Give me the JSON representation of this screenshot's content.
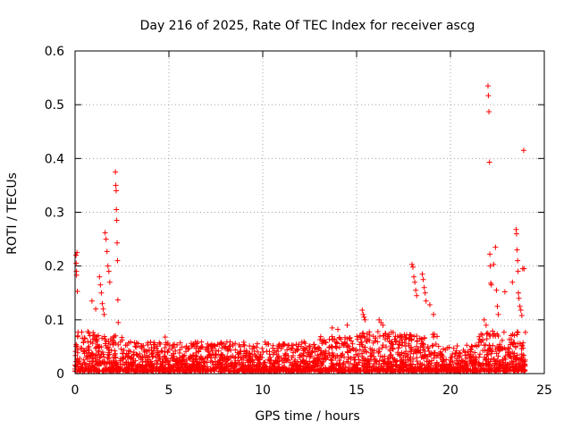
{
  "chart_data": {
    "type": "scatter",
    "title": "Day 216 of 2025, Rate Of TEC Index for receiver ascg",
    "xlabel": "GPS time / hours",
    "ylabel": "ROTI / TECUs",
    "xlim": [
      0,
      25
    ],
    "ylim": [
      0,
      0.6
    ],
    "x_ticks": [
      0,
      5,
      10,
      15,
      20,
      25
    ],
    "x_tick_labels": [
      "0",
      "5",
      "10",
      "15",
      "20",
      "25"
    ],
    "y_ticks": [
      0,
      0.1,
      0.2,
      0.3,
      0.4,
      0.5,
      0.6
    ],
    "y_tick_labels": [
      "0",
      "0.1",
      "0.2",
      "0.3",
      "0.4",
      "0.5",
      "0.6"
    ],
    "grid": true,
    "marker": "plus",
    "color": "#ff0000",
    "series": [
      {
        "name": "ROTI",
        "points": [
          [
            0.05,
            0.22
          ],
          [
            0.06,
            0.205
          ],
          [
            0.07,
            0.19
          ],
          [
            0.08,
            0.183
          ],
          [
            0.1,
            0.225
          ],
          [
            0.12,
            0.153
          ],
          [
            0.15,
            0.07
          ],
          [
            0.9,
            0.135
          ],
          [
            1.1,
            0.12
          ],
          [
            1.3,
            0.18
          ],
          [
            1.35,
            0.165
          ],
          [
            1.4,
            0.15
          ],
          [
            1.45,
            0.13
          ],
          [
            1.5,
            0.12
          ],
          [
            1.55,
            0.11
          ],
          [
            1.6,
            0.262
          ],
          [
            1.65,
            0.25
          ],
          [
            1.7,
            0.227
          ],
          [
            1.75,
            0.2
          ],
          [
            1.8,
            0.19
          ],
          [
            1.85,
            0.17
          ],
          [
            2.15,
            0.375
          ],
          [
            2.17,
            0.35
          ],
          [
            2.19,
            0.34
          ],
          [
            2.2,
            0.305
          ],
          [
            2.22,
            0.285
          ],
          [
            2.24,
            0.243
          ],
          [
            2.26,
            0.21
          ],
          [
            2.28,
            0.137
          ],
          [
            2.3,
            0.095
          ],
          [
            4.8,
            0.068
          ],
          [
            13.7,
            0.085
          ],
          [
            14.0,
            0.082
          ],
          [
            14.5,
            0.09
          ],
          [
            15.3,
            0.118
          ],
          [
            15.35,
            0.11
          ],
          [
            15.4,
            0.105
          ],
          [
            15.45,
            0.1
          ],
          [
            16.2,
            0.1
          ],
          [
            16.3,
            0.095
          ],
          [
            16.4,
            0.09
          ],
          [
            17.95,
            0.203
          ],
          [
            18.0,
            0.198
          ],
          [
            18.05,
            0.18
          ],
          [
            18.1,
            0.17
          ],
          [
            18.15,
            0.155
          ],
          [
            18.2,
            0.145
          ],
          [
            18.5,
            0.185
          ],
          [
            18.55,
            0.175
          ],
          [
            18.6,
            0.16
          ],
          [
            18.65,
            0.15
          ],
          [
            18.7,
            0.135
          ],
          [
            18.9,
            0.128
          ],
          [
            19.1,
            0.11
          ],
          [
            21.8,
            0.1
          ],
          [
            21.9,
            0.09
          ],
          [
            22.0,
            0.535
          ],
          [
            22.02,
            0.517
          ],
          [
            22.05,
            0.487
          ],
          [
            22.08,
            0.393
          ],
          [
            22.1,
            0.222
          ],
          [
            22.12,
            0.2
          ],
          [
            22.15,
            0.168
          ],
          [
            22.18,
            0.165
          ],
          [
            22.3,
            0.203
          ],
          [
            22.4,
            0.235
          ],
          [
            22.45,
            0.155
          ],
          [
            22.5,
            0.125
          ],
          [
            22.55,
            0.11
          ],
          [
            22.9,
            0.152
          ],
          [
            23.3,
            0.17
          ],
          [
            23.5,
            0.268
          ],
          [
            23.52,
            0.26
          ],
          [
            23.55,
            0.23
          ],
          [
            23.58,
            0.21
          ],
          [
            23.6,
            0.19
          ],
          [
            23.62,
            0.15
          ],
          [
            23.65,
            0.14
          ],
          [
            23.7,
            0.125
          ],
          [
            23.75,
            0.118
          ],
          [
            23.8,
            0.108
          ],
          [
            23.85,
            0.195
          ],
          [
            23.9,
            0.415
          ],
          [
            23.92,
            0.195
          ]
        ],
        "baseline_density": [
          {
            "from": 0.0,
            "to": 1.0,
            "max": 0.075
          },
          {
            "from": 1.0,
            "to": 2.6,
            "max": 0.07
          },
          {
            "from": 2.6,
            "to": 13.0,
            "max": 0.055
          },
          {
            "from": 13.0,
            "to": 15.0,
            "max": 0.065
          },
          {
            "from": 15.0,
            "to": 17.0,
            "max": 0.075
          },
          {
            "from": 17.0,
            "to": 19.5,
            "max": 0.07
          },
          {
            "from": 19.5,
            "to": 21.5,
            "max": 0.05
          },
          {
            "from": 21.5,
            "to": 24.0,
            "max": 0.075
          }
        ]
      }
    ]
  }
}
